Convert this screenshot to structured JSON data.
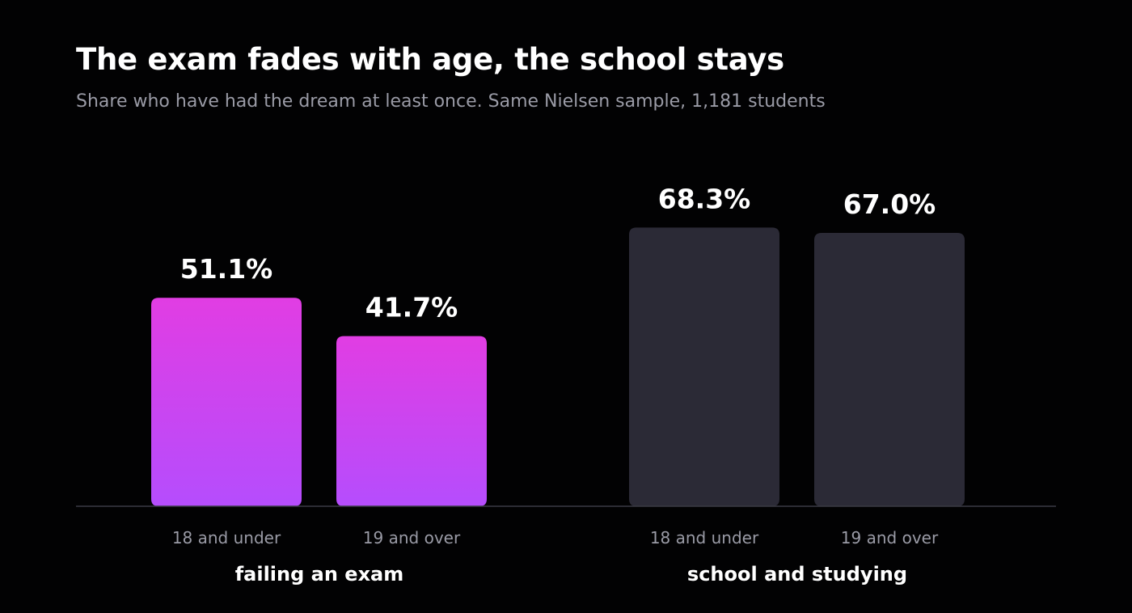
{
  "header": {
    "title": "The exam fades with age, the school stays",
    "subtitle": "Share who have had the dream at least once. Same Nielsen sample, 1,181 students"
  },
  "colors": {
    "background": "#020203",
    "highlight_top": "#e13de3",
    "highlight_bottom": "#b54dfd",
    "muted_bar": "#2b2a36",
    "baseline": "#3a3a44",
    "tick_text": "#9a9ba6",
    "value_text": "#ffffff"
  },
  "chart_data": {
    "type": "bar",
    "title": "The exam fades with age, the school stays",
    "subtitle": "Share who have had the dream at least once. Same Nielsen sample, 1,181 students",
    "unit": "%",
    "ylim": [
      0,
      80
    ],
    "grid": false,
    "groups": [
      {
        "name": "failing an exam",
        "highlight": true,
        "bars": [
          {
            "category": "18 and under",
            "value": 51.1,
            "label": "51.1%"
          },
          {
            "category": "19 and over",
            "value": 41.7,
            "label": "41.7%"
          }
        ]
      },
      {
        "name": "school and studying",
        "highlight": false,
        "bars": [
          {
            "category": "18 and under",
            "value": 68.3,
            "label": "68.3%"
          },
          {
            "category": "19 and over",
            "value": 67.0,
            "label": "67.0%"
          }
        ]
      }
    ]
  }
}
